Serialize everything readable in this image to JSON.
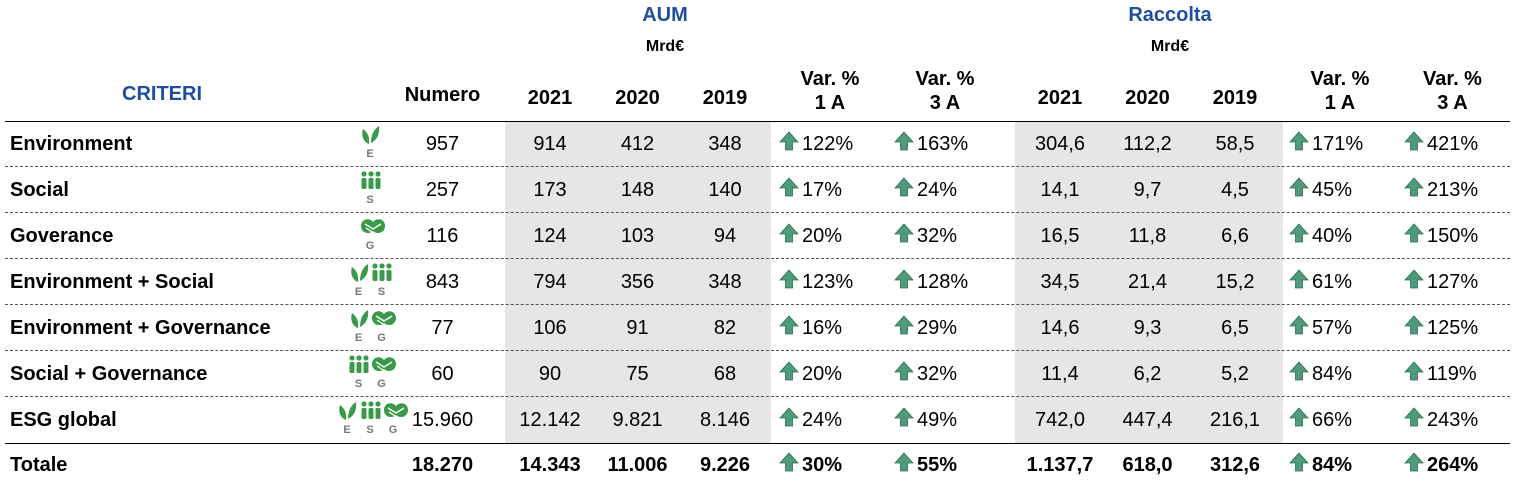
{
  "header": {
    "criteria_label": "CRITERI",
    "numero_label": "Numero",
    "aum": {
      "title": "AUM",
      "unit": "Mrd€"
    },
    "raccolta": {
      "title": "Raccolta",
      "unit": "Mrd€"
    },
    "years": [
      "2021",
      "2020",
      "2019"
    ],
    "var1_l1": "Var. %",
    "var1_l2": "1 A",
    "var3_l1": "Var. %",
    "var3_l2": "3 A"
  },
  "icon_letters": {
    "e": "E",
    "s": "S",
    "g": "G"
  },
  "colors": {
    "accent_blue": "#1f4e9c",
    "icon_green": "#3a9a4a",
    "arrow_green": "#4e9a7a",
    "shade": "#e6e6e6"
  },
  "rows": [
    {
      "name": "Environment",
      "icons": [
        "e"
      ],
      "numero": "957",
      "aum": [
        "914",
        "412",
        "348"
      ],
      "aum_var1": "122%",
      "aum_var3": "163%",
      "rac": [
        "304,6",
        "112,2",
        "58,5"
      ],
      "rac_var1": "171%",
      "rac_var3": "421%"
    },
    {
      "name": "Social",
      "icons": [
        "s"
      ],
      "numero": "257",
      "aum": [
        "173",
        "148",
        "140"
      ],
      "aum_var1": "17%",
      "aum_var3": "24%",
      "rac": [
        "14,1",
        "9,7",
        "4,5"
      ],
      "rac_var1": "45%",
      "rac_var3": "213%"
    },
    {
      "name": "Goverance",
      "icons": [
        "g"
      ],
      "numero": "116",
      "aum": [
        "124",
        "103",
        "94"
      ],
      "aum_var1": "20%",
      "aum_var3": "32%",
      "rac": [
        "16,5",
        "11,8",
        "6,6"
      ],
      "rac_var1": "40%",
      "rac_var3": "150%"
    },
    {
      "name": "Environment + Social",
      "icons": [
        "e",
        "s"
      ],
      "numero": "843",
      "aum": [
        "794",
        "356",
        "348"
      ],
      "aum_var1": "123%",
      "aum_var3": "128%",
      "rac": [
        "34,5",
        "21,4",
        "15,2"
      ],
      "rac_var1": "61%",
      "rac_var3": "127%"
    },
    {
      "name": "Environment + Governance",
      "icons": [
        "e",
        "g"
      ],
      "numero": "77",
      "aum": [
        "106",
        "91",
        "82"
      ],
      "aum_var1": "16%",
      "aum_var3": "29%",
      "rac": [
        "14,6",
        "9,3",
        "6,5"
      ],
      "rac_var1": "57%",
      "rac_var3": "125%"
    },
    {
      "name": "Social + Governance",
      "icons": [
        "s",
        "g"
      ],
      "numero": "60",
      "aum": [
        "90",
        "75",
        "68"
      ],
      "aum_var1": "20%",
      "aum_var3": "32%",
      "rac": [
        "11,4",
        "6,2",
        "5,2"
      ],
      "rac_var1": "84%",
      "rac_var3": "119%"
    },
    {
      "name": "ESG global",
      "icons": [
        "e",
        "s",
        "g"
      ],
      "numero": "15.960",
      "aum": [
        "12.142",
        "9.821",
        "8.146"
      ],
      "aum_var1": "24%",
      "aum_var3": "49%",
      "rac": [
        "742,0",
        "447,4",
        "216,1"
      ],
      "rac_var1": "66%",
      "rac_var3": "243%"
    },
    {
      "name": "Totale",
      "icons": [],
      "numero": "18.270",
      "aum": [
        "14.343",
        "11.006",
        "9.226"
      ],
      "aum_var1": "30%",
      "aum_var3": "55%",
      "rac": [
        "1.137,7",
        "618,0",
        "312,6"
      ],
      "rac_var1": "84%",
      "rac_var3": "264%"
    }
  ]
}
